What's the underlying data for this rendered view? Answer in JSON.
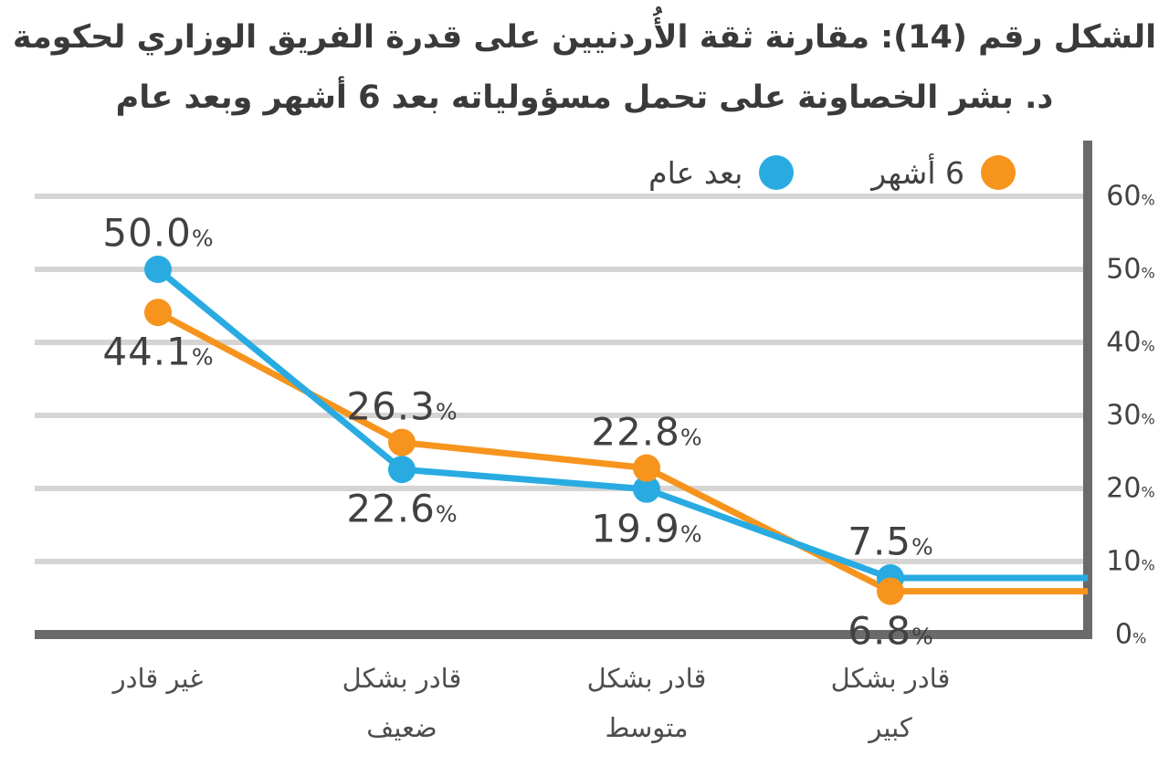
{
  "title": {
    "line1": "الشكل رقم (14): مقارنة ثقة الأُردنيين على قدرة الفريق الوزاري لحكومة",
    "line2": "د. بشر الخصاونة على تحمل مسؤولياته بعد 6 أشهر وبعد عام"
  },
  "legend": {
    "items": [
      {
        "label": "6 أشهر",
        "color_key": "orange"
      },
      {
        "label": "بعد عام",
        "color_key": "blue"
      }
    ]
  },
  "colors": {
    "blue": "#29ABE2",
    "orange": "#F7941D",
    "grid": "#D6D5D3",
    "axis": "#6A6A6C",
    "text": "#414042"
  },
  "chart_data": {
    "type": "line",
    "title": "مقارنة ثقة الأردنيين على قدرة الفريق الوزاري لحكومة د. بشر الخصاونة على تحمل مسؤولياته بعد 6 أشهر وبعد عام",
    "categories": [
      "غير قادر",
      "قادر بشكل\nضعيف",
      "قادر بشكل\nمتوسط",
      "قادر بشكل\nكبير"
    ],
    "series": [
      {
        "name": "6 أشهر",
        "color_key": "orange",
        "values": [
          44.1,
          26.3,
          22.8,
          6.8
        ]
      },
      {
        "name": "بعد عام",
        "color_key": "blue",
        "values": [
          50.0,
          22.6,
          19.9,
          7.5
        ]
      }
    ],
    "yticks": [
      0,
      10,
      20,
      30,
      40,
      50,
      60
    ],
    "ylim": [
      0,
      67
    ],
    "yaxis_position": "right",
    "legend_position": "top-right",
    "grid": true,
    "percent_symbol": "%"
  }
}
